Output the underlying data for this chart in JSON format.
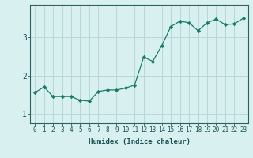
{
  "x": [
    0,
    1,
    2,
    3,
    4,
    5,
    6,
    7,
    8,
    9,
    10,
    11,
    12,
    13,
    14,
    15,
    16,
    17,
    18,
    19,
    20,
    21,
    22,
    23
  ],
  "y": [
    1.55,
    1.7,
    1.45,
    1.45,
    1.45,
    1.35,
    1.33,
    1.58,
    1.62,
    1.62,
    1.67,
    1.75,
    2.48,
    2.37,
    2.78,
    3.28,
    3.42,
    3.38,
    3.17,
    3.38,
    3.47,
    3.33,
    3.35,
    3.5
  ],
  "line_color": "#1a7a6a",
  "marker": "D",
  "marker_size": 2.2,
  "bg_color": "#d8f0f0",
  "grid_color": "#b8d8d8",
  "xlabel": "Humidex (Indice chaleur)",
  "yticks": [
    1,
    2,
    3
  ],
  "xlim": [
    -0.5,
    23.5
  ],
  "ylim": [
    0.75,
    3.85
  ],
  "axis_color": "#2a6060",
  "font_color": "#1a5050",
  "tick_fontsize": 5.5,
  "label_fontsize": 6.5
}
